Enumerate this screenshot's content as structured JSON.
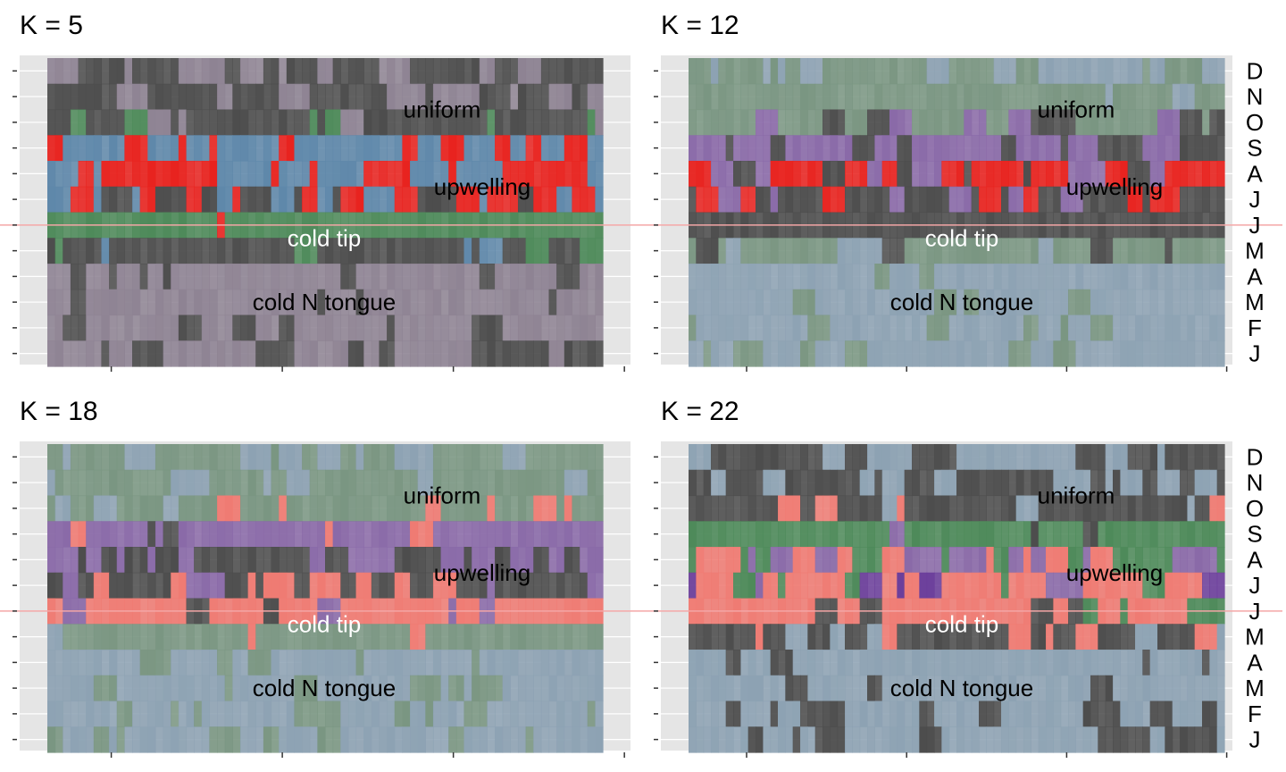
{
  "chart_data": {
    "type": "heatmap",
    "n_columns": 72,
    "grid": true,
    "reference_line_row": "J",
    "month_labels": [
      "D",
      "N",
      "O",
      "S",
      "A",
      "J",
      "J",
      "M",
      "A",
      "M",
      "F",
      "J"
    ],
    "region_labels": [
      {
        "text": "uniform",
        "center_row": 1.5
      },
      {
        "text": "upwelling",
        "center_row": 4.5
      },
      {
        "text": "cold tip",
        "center_row": 6.5
      },
      {
        "text": "cold N tongue",
        "center_row": 9.0
      }
    ],
    "colors": {
      "dark_gray": "#4d4d4d",
      "mauve": "#8e8393",
      "green": "#4e8a5a",
      "blue": "#5f88aa",
      "red": "#e8231f",
      "sage": "#7a9682",
      "light_blue": "#8da2b3",
      "purple": "#8a6aa8",
      "salmon": "#ef7b73",
      "deep_purple": "#6a3d9a",
      "reference_line": "#f4a6a6"
    },
    "panels": [
      {
        "title": "K = 5",
        "rows": [
          {
            "base": "dark_gray",
            "alt": [
              "mauve"
            ],
            "p": 0.3
          },
          {
            "base": "dark_gray",
            "alt": [
              "mauve"
            ],
            "p": 0.3
          },
          {
            "base": "dark_gray",
            "alt": [
              "green",
              "mauve"
            ],
            "p": 0.3
          },
          {
            "base": "blue",
            "alt": [
              "red"
            ],
            "p": 0.3
          },
          {
            "base": "red",
            "alt": [
              "blue"
            ],
            "p": 0.45
          },
          {
            "base": "red",
            "alt": [
              "blue",
              "dark_gray"
            ],
            "p": 0.45
          },
          {
            "base": "green",
            "alt": [
              "red"
            ],
            "p": 0.05
          },
          {
            "base": "dark_gray",
            "alt": [
              "green",
              "blue"
            ],
            "p": 0.15
          },
          {
            "base": "mauve",
            "alt": [
              "dark_gray"
            ],
            "p": 0.1
          },
          {
            "base": "mauve",
            "alt": [
              "dark_gray"
            ],
            "p": 0.15
          },
          {
            "base": "mauve",
            "alt": [
              "dark_gray"
            ],
            "p": 0.25
          },
          {
            "base": "mauve",
            "alt": [
              "dark_gray"
            ],
            "p": 0.35
          }
        ]
      },
      {
        "title": "K = 12",
        "rows": [
          {
            "base": "sage",
            "alt": [
              "light_blue"
            ],
            "p": 0.35
          },
          {
            "base": "sage",
            "alt": [
              "light_blue"
            ],
            "p": 0.3
          },
          {
            "base": "sage",
            "alt": [
              "purple",
              "dark_gray"
            ],
            "p": 0.3
          },
          {
            "base": "purple",
            "alt": [
              "dark_gray"
            ],
            "p": 0.4
          },
          {
            "base": "red",
            "alt": [
              "dark_gray",
              "purple"
            ],
            "p": 0.5
          },
          {
            "base": "dark_gray",
            "alt": [
              "red",
              "purple"
            ],
            "p": 0.4
          },
          {
            "base": "dark_gray",
            "alt": [
              "purple"
            ],
            "p": 0.05
          },
          {
            "base": "sage",
            "alt": [
              "dark_gray",
              "light_blue"
            ],
            "p": 0.25
          },
          {
            "base": "light_blue",
            "alt": [
              "sage"
            ],
            "p": 0.1
          },
          {
            "base": "light_blue",
            "alt": [
              "sage"
            ],
            "p": 0.15
          },
          {
            "base": "light_blue",
            "alt": [
              "sage"
            ],
            "p": 0.2
          },
          {
            "base": "light_blue",
            "alt": [
              "sage"
            ],
            "p": 0.25
          }
        ]
      },
      {
        "title": "K = 18",
        "rows": [
          {
            "base": "sage",
            "alt": [
              "light_blue"
            ],
            "p": 0.35
          },
          {
            "base": "sage",
            "alt": [
              "light_blue"
            ],
            "p": 0.3
          },
          {
            "base": "sage",
            "alt": [
              "salmon",
              "light_blue"
            ],
            "p": 0.25
          },
          {
            "base": "purple",
            "alt": [
              "salmon",
              "dark_gray"
            ],
            "p": 0.2
          },
          {
            "base": "dark_gray",
            "alt": [
              "purple"
            ],
            "p": 0.45
          },
          {
            "base": "dark_gray",
            "alt": [
              "purple",
              "salmon"
            ],
            "p": 0.35
          },
          {
            "base": "salmon",
            "alt": [
              "dark_gray",
              "purple"
            ],
            "p": 0.1
          },
          {
            "base": "sage",
            "alt": [
              "salmon",
              "light_blue"
            ],
            "p": 0.2
          },
          {
            "base": "light_blue",
            "alt": [
              "sage"
            ],
            "p": 0.1
          },
          {
            "base": "light_blue",
            "alt": [
              "sage"
            ],
            "p": 0.15
          },
          {
            "base": "light_blue",
            "alt": [
              "sage"
            ],
            "p": 0.2
          },
          {
            "base": "light_blue",
            "alt": [
              "sage"
            ],
            "p": 0.25
          }
        ]
      },
      {
        "title": "K = 22",
        "rows": [
          {
            "base": "dark_gray",
            "alt": [
              "light_blue"
            ],
            "p": 0.35
          },
          {
            "base": "dark_gray",
            "alt": [
              "light_blue"
            ],
            "p": 0.35
          },
          {
            "base": "dark_gray",
            "alt": [
              "salmon",
              "light_blue"
            ],
            "p": 0.35
          },
          {
            "base": "green",
            "alt": [
              "purple",
              "dark_gray"
            ],
            "p": 0.15
          },
          {
            "base": "green",
            "alt": [
              "purple",
              "salmon"
            ],
            "p": 0.45
          },
          {
            "base": "salmon",
            "alt": [
              "purple",
              "deep_purple",
              "green"
            ],
            "p": 0.5
          },
          {
            "base": "salmon",
            "alt": [
              "dark_gray",
              "green"
            ],
            "p": 0.1
          },
          {
            "base": "dark_gray",
            "alt": [
              "salmon",
              "light_blue"
            ],
            "p": 0.3
          },
          {
            "base": "light_blue",
            "alt": [
              "dark_gray"
            ],
            "p": 0.1
          },
          {
            "base": "light_blue",
            "alt": [
              "dark_gray"
            ],
            "p": 0.15
          },
          {
            "base": "light_blue",
            "alt": [
              "dark_gray"
            ],
            "p": 0.25
          },
          {
            "base": "light_blue",
            "alt": [
              "dark_gray"
            ],
            "p": 0.35
          }
        ]
      }
    ]
  }
}
